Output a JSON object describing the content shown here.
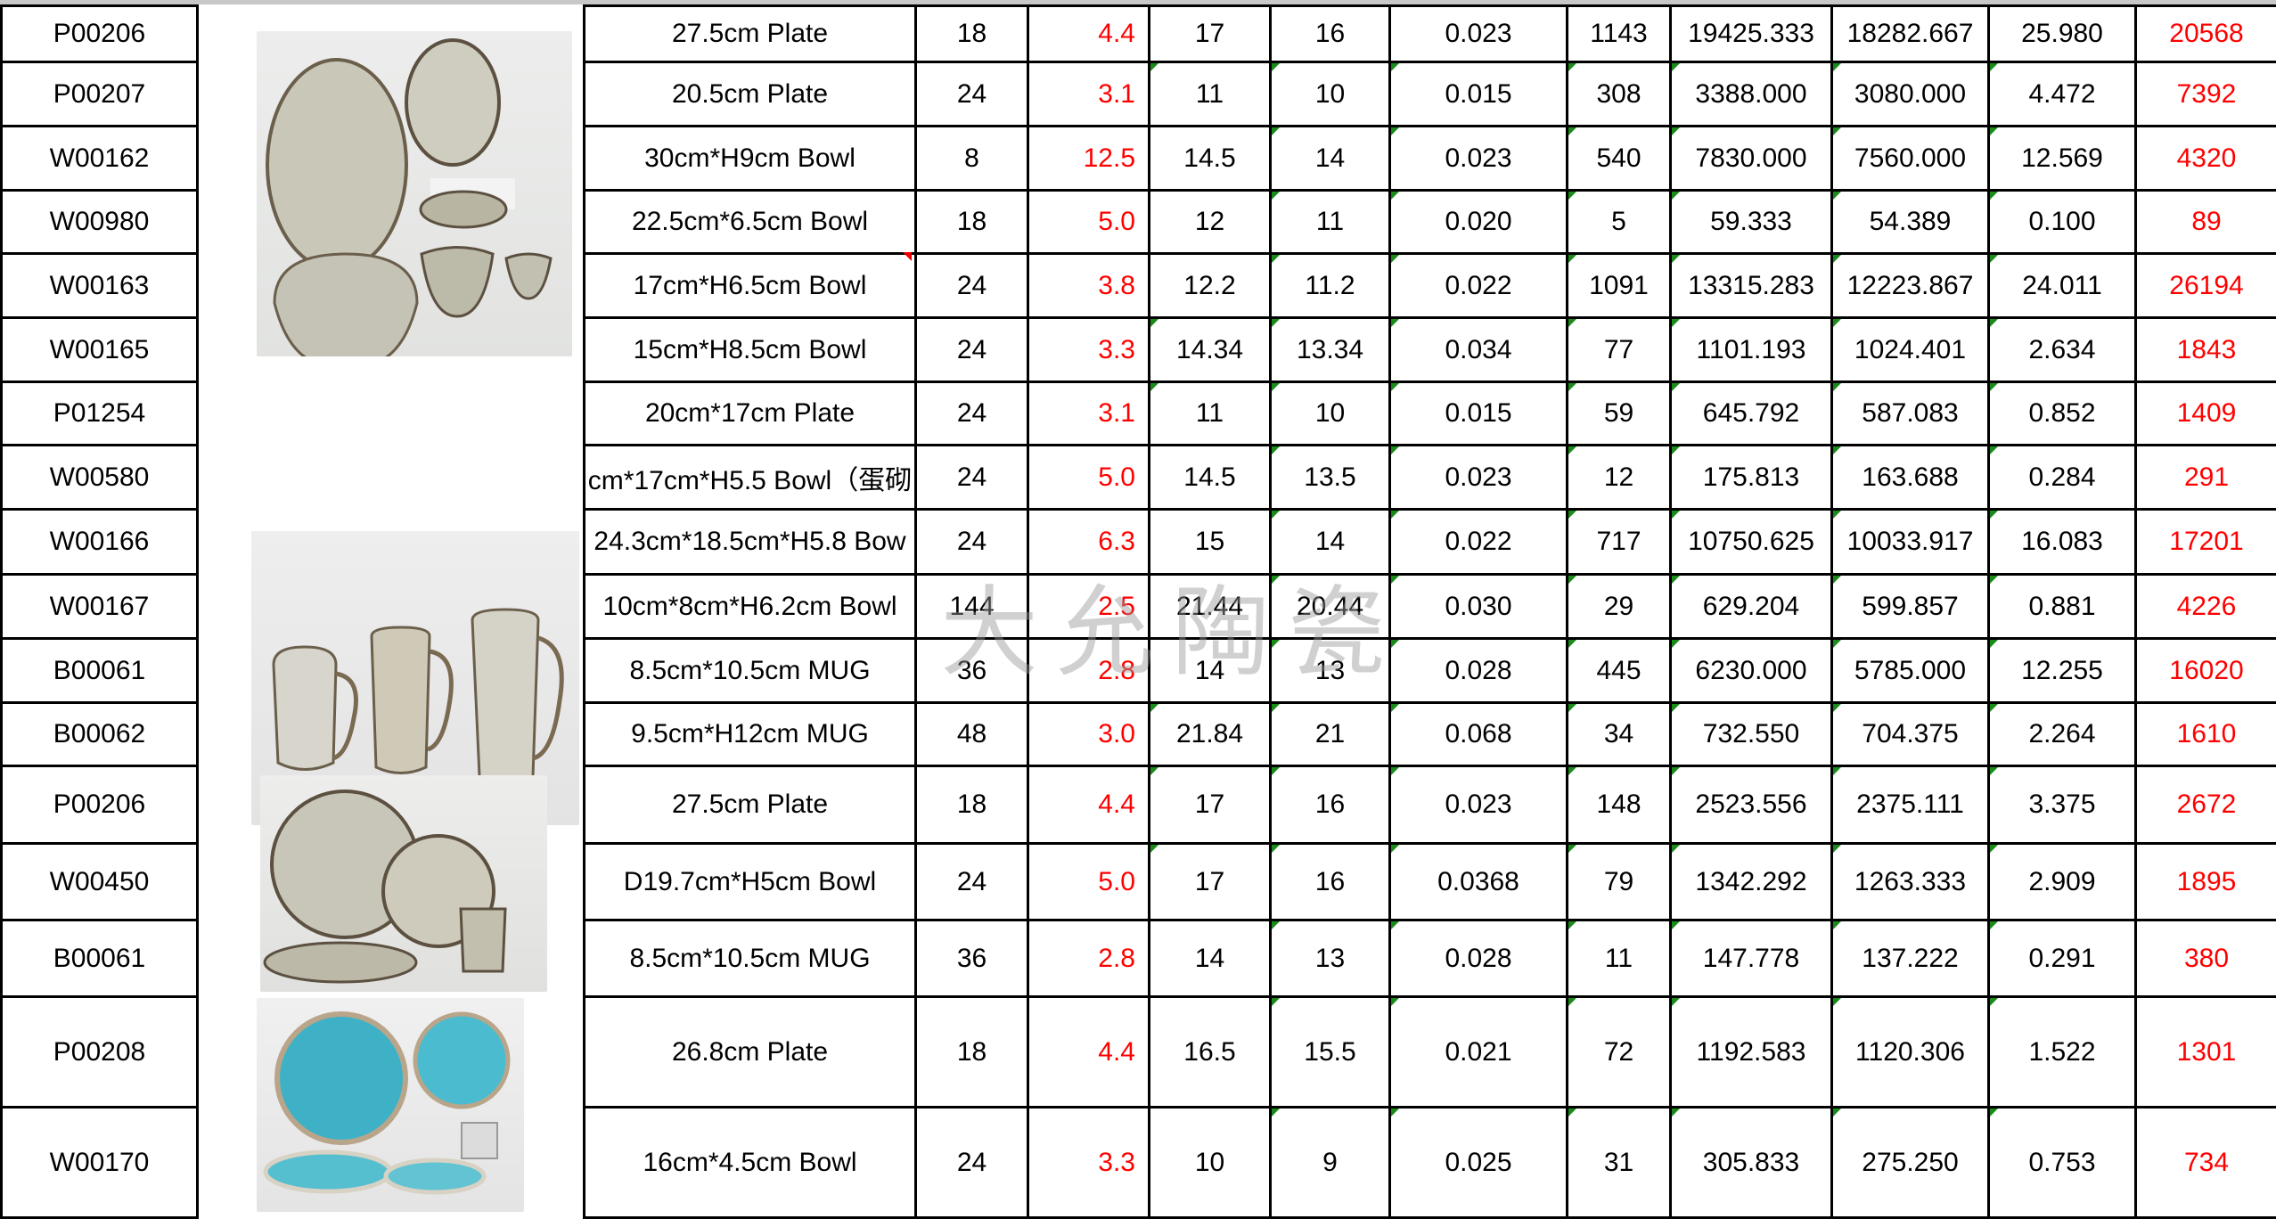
{
  "watermark": "大允陶瓷",
  "colors": {
    "price": "#ff0000",
    "total": "#ff0000",
    "cell_marker": "#1a8a1a"
  },
  "photos": [
    {
      "name": "grey-glaze-plates-and-bowls-photo"
    },
    {
      "name": "grey-glaze-mugs-photo"
    },
    {
      "name": "grey-glaze-plates-bowl-mug-photo"
    },
    {
      "name": "blue-glaze-plates-bowls-photo"
    }
  ],
  "rows": [
    {
      "code": "P00206",
      "desc": "27.5cm Plate",
      "qty": "18",
      "price": "4.4",
      "c1": "17",
      "c2": "16",
      "c3": "0.023",
      "c4": "1143",
      "c5": "19425.333",
      "c6": "18282.667",
      "c7": "25.980",
      "total": "20568"
    },
    {
      "code": "P00207",
      "desc": "20.5cm Plate",
      "qty": "24",
      "price": "3.1",
      "c1": "11",
      "c2": "10",
      "c3": "0.015",
      "c4": "308",
      "c5": "3388.000",
      "c6": "3080.000",
      "c7": "4.472",
      "total": "7392"
    },
    {
      "code": "W00162",
      "desc": "30cm*H9cm Bowl",
      "qty": "8",
      "price": "12.5",
      "c1": "14.5",
      "c2": "14",
      "c3": "0.023",
      "c4": "540",
      "c5": "7830.000",
      "c6": "7560.000",
      "c7": "12.569",
      "total": "4320"
    },
    {
      "code": "W00980",
      "desc": "22.5cm*6.5cm Bowl",
      "qty": "18",
      "price": "5.0",
      "c1": "12",
      "c2": "11",
      "c3": "0.020",
      "c4": "5",
      "c5": "59.333",
      "c6": "54.389",
      "c7": "0.100",
      "total": "89"
    },
    {
      "code": "W00163",
      "desc": "17cm*H6.5cm Bowl",
      "qty": "24",
      "price": "3.8",
      "c1": "12.2",
      "c2": "11.2",
      "c3": "0.022",
      "c4": "1091",
      "c5": "13315.283",
      "c6": "12223.867",
      "c7": "24.011",
      "total": "26194"
    },
    {
      "code": "W00165",
      "desc": "15cm*H8.5cm Bowl",
      "qty": "24",
      "price": "3.3",
      "c1": "14.34",
      "c2": "13.34",
      "c3": "0.034",
      "c4": "77",
      "c5": "1101.193",
      "c6": "1024.401",
      "c7": "2.634",
      "total": "1843"
    },
    {
      "code": "P01254",
      "desc": "20cm*17cm Plate",
      "qty": "24",
      "price": "3.1",
      "c1": "11",
      "c2": "10",
      "c3": "0.015",
      "c4": "59",
      "c5": "645.792",
      "c6": "587.083",
      "c7": "0.852",
      "total": "1409"
    },
    {
      "code": "W00580",
      "desc": "cm*17cm*H5.5 Bowl（蛋砌",
      "qty": "24",
      "price": "5.0",
      "c1": "14.5",
      "c2": "13.5",
      "c3": "0.023",
      "c4": "12",
      "c5": "175.813",
      "c6": "163.688",
      "c7": "0.284",
      "total": "291"
    },
    {
      "code": "W00166",
      "desc": "24.3cm*18.5cm*H5.8 Bow",
      "qty": "24",
      "price": "6.3",
      "c1": "15",
      "c2": "14",
      "c3": "0.022",
      "c4": "717",
      "c5": "10750.625",
      "c6": "10033.917",
      "c7": "16.083",
      "total": "17201"
    },
    {
      "code": "W00167",
      "desc": "10cm*8cm*H6.2cm Bowl",
      "qty": "144",
      "price": "2.5",
      "c1": "21.44",
      "c2": "20.44",
      "c3": "0.030",
      "c4": "29",
      "c5": "629.204",
      "c6": "599.857",
      "c7": "0.881",
      "total": "4226"
    },
    {
      "code": "B00061",
      "desc": "8.5cm*10.5cm MUG",
      "qty": "36",
      "price": "2.8",
      "c1": "14",
      "c2": "13",
      "c3": "0.028",
      "c4": "445",
      "c5": "6230.000",
      "c6": "5785.000",
      "c7": "12.255",
      "total": "16020"
    },
    {
      "code": "B00062",
      "desc": "9.5cm*H12cm MUG",
      "qty": "48",
      "price": "3.0",
      "c1": "21.84",
      "c2": "21",
      "c3": "0.068",
      "c4": "34",
      "c5": "732.550",
      "c6": "704.375",
      "c7": "2.264",
      "total": "1610"
    },
    {
      "code": "P00206",
      "desc": "27.5cm Plate",
      "qty": "18",
      "price": "4.4",
      "c1": "17",
      "c2": "16",
      "c3": "0.023",
      "c4": "148",
      "c5": "2523.556",
      "c6": "2375.111",
      "c7": "3.375",
      "total": "2672"
    },
    {
      "code": "W00450",
      "desc": "D19.7cm*H5cm Bowl",
      "qty": "24",
      "price": "5.0",
      "c1": "17",
      "c2": "16",
      "c3": "0.0368",
      "c4": "79",
      "c5": "1342.292",
      "c6": "1263.333",
      "c7": "2.909",
      "total": "1895"
    },
    {
      "code": "B00061",
      "desc": "8.5cm*10.5cm MUG",
      "qty": "36",
      "price": "2.8",
      "c1": "14",
      "c2": "13",
      "c3": "0.028",
      "c4": "11",
      "c5": "147.778",
      "c6": "137.222",
      "c7": "0.291",
      "total": "380"
    },
    {
      "code": "P00208",
      "desc": "26.8cm Plate",
      "qty": "18",
      "price": "4.4",
      "c1": "16.5",
      "c2": "15.5",
      "c3": "0.021",
      "c4": "72",
      "c5": "1192.583",
      "c6": "1120.306",
      "c7": "1.522",
      "total": "1301"
    },
    {
      "code": "W00170",
      "desc": "16cm*4.5cm Bowl",
      "qty": "24",
      "price": "3.3",
      "c1": "10",
      "c2": "9",
      "c3": "0.025",
      "c4": "31",
      "c5": "305.833",
      "c6": "275.250",
      "c7": "0.753",
      "total": "734"
    }
  ]
}
